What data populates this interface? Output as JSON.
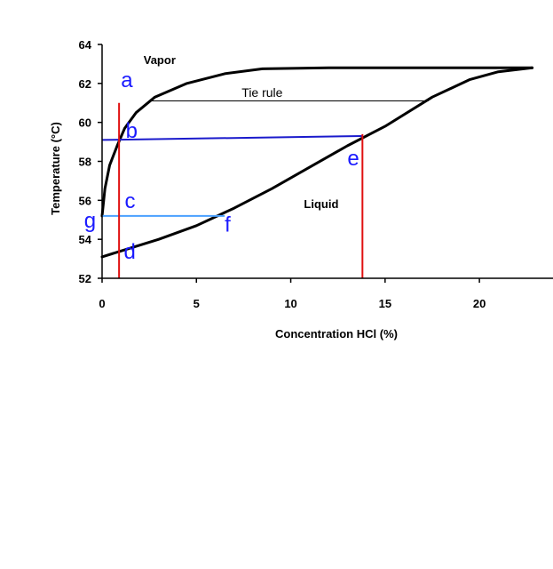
{
  "chart_data": {
    "type": "line",
    "xlabel": "Concentration HCl (%)",
    "ylabel": "Temperature (°C)",
    "xlim": [
      0,
      23
    ],
    "ylim": [
      52,
      64
    ],
    "xticks": [
      0,
      5,
      10,
      15,
      20
    ],
    "yticks": [
      52,
      54,
      56,
      58,
      60,
      62,
      64
    ],
    "grid": false,
    "series": [
      {
        "curve": "vapor",
        "color": "#000000",
        "points": [
          [
            0,
            55.2
          ],
          [
            0.15,
            56.6
          ],
          [
            0.4,
            57.8
          ],
          [
            0.8,
            58.8
          ],
          [
            1.2,
            59.7
          ],
          [
            1.8,
            60.5
          ],
          [
            2.8,
            61.3
          ],
          [
            4.5,
            62.0
          ],
          [
            6.5,
            62.5
          ],
          [
            8.5,
            62.75
          ],
          [
            12,
            62.8
          ],
          [
            18,
            62.8
          ],
          [
            22.8,
            62.8
          ]
        ]
      },
      {
        "curve": "liquid",
        "color": "#000000",
        "points": [
          [
            0,
            53.1
          ],
          [
            1,
            53.4
          ],
          [
            3,
            54.0
          ],
          [
            5,
            54.7
          ],
          [
            7,
            55.6
          ],
          [
            9,
            56.6
          ],
          [
            11,
            57.7
          ],
          [
            13,
            58.8
          ],
          [
            15,
            59.8
          ],
          [
            17.5,
            61.3
          ],
          [
            19.5,
            62.2
          ],
          [
            21,
            62.6
          ],
          [
            22.8,
            62.8
          ]
        ]
      }
    ],
    "lines": [
      {
        "id": "tie-rule",
        "x": [
          2.5,
          17.3
        ],
        "y": [
          61.1,
          61.1
        ],
        "color": "#000000",
        "width": 1
      },
      {
        "id": "line-b-e",
        "x": [
          0,
          13.8
        ],
        "y": [
          59.1,
          59.3
        ],
        "color": "#1a1acc",
        "width": 2
      },
      {
        "id": "line-g-f",
        "x": [
          0,
          6.5
        ],
        "y": [
          55.2,
          55.2
        ],
        "color": "#4aa0ff",
        "width": 2
      },
      {
        "id": "red-vertical-left",
        "x": [
          0.9,
          0.9
        ],
        "y": [
          61.0,
          52.0
        ],
        "color": "#e01010",
        "width": 2
      },
      {
        "id": "red-vertical-right",
        "x": [
          13.8,
          13.8
        ],
        "y": [
          59.4,
          52.0
        ],
        "color": "#e01010",
        "width": 2
      }
    ],
    "annotations": [
      {
        "id": "region-vapor",
        "text": "Vapor",
        "x": 2.2,
        "y": 63.0,
        "kind": "region"
      },
      {
        "id": "region-liquid",
        "text": "Liquid",
        "x": 10.7,
        "y": 55.6,
        "kind": "region"
      },
      {
        "id": "tie-rule-label",
        "text": "Tie rule",
        "x": 7.4,
        "y": 61.3,
        "kind": "tie"
      },
      {
        "id": "point-a",
        "text": "a",
        "x": 1.0,
        "y": 61.8,
        "kind": "point"
      },
      {
        "id": "point-b",
        "text": "b",
        "x": 1.25,
        "y": 59.2,
        "kind": "point"
      },
      {
        "id": "point-e",
        "text": "e",
        "x": 13.0,
        "y": 57.8,
        "kind": "point"
      },
      {
        "id": "point-c",
        "text": "c",
        "x": 1.2,
        "y": 55.6,
        "kind": "point"
      },
      {
        "id": "point-g",
        "text": "g",
        "x": -0.95,
        "y": 54.6,
        "kind": "point"
      },
      {
        "id": "point-f",
        "text": "f",
        "x": 6.5,
        "y": 54.4,
        "kind": "point"
      },
      {
        "id": "point-d",
        "text": "d",
        "x": 1.15,
        "y": 53.0,
        "kind": "point"
      }
    ]
  }
}
